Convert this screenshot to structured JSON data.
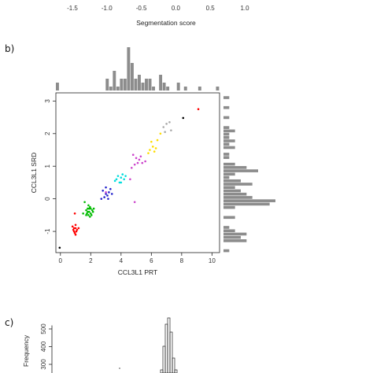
{
  "panels": {
    "b": "b)",
    "c": "c)"
  },
  "chart_data": [
    {
      "type": "table",
      "description_axis_only": true,
      "xlabel": "Segmentation score",
      "xticks": [
        "-1.5",
        "-1.0",
        "-0.5",
        "0.0",
        "0.5",
        "1.0"
      ],
      "tick_values": [
        -1.5,
        -1.0,
        -0.5,
        0.0,
        0.5,
        1.0
      ]
    },
    {
      "type": "scatter",
      "xlabel": "CCL3L1 PRT",
      "ylabel": "CCL3L1 SRD",
      "xlim": [
        -0.3,
        10.5
      ],
      "ylim": [
        -1.65,
        3.25
      ],
      "xticks": [
        "0",
        "2",
        "4",
        "6",
        "8",
        "10"
      ],
      "yticks": [
        "-1",
        "0",
        "1",
        "2",
        "3"
      ],
      "clusters": [
        {
          "color": "#000000",
          "points": [
            [
              -0.05,
              -1.5
            ]
          ]
        },
        {
          "color": "#ff0000",
          "points": [
            [
              0.8,
              -0.85
            ],
            [
              0.9,
              -1.0
            ],
            [
              1.0,
              -0.9
            ],
            [
              0.95,
              -1.05
            ],
            [
              1.1,
              -0.95
            ],
            [
              0.85,
              -0.95
            ],
            [
              1.0,
              -0.8
            ],
            [
              0.9,
              -0.9
            ],
            [
              1.05,
              -1.0
            ],
            [
              1.2,
              -0.9
            ],
            [
              0.95,
              -0.45
            ],
            [
              1.0,
              -1.1
            ]
          ]
        },
        {
          "color": "#00bb00",
          "points": [
            [
              1.7,
              -0.35
            ],
            [
              1.8,
              -0.4
            ],
            [
              1.9,
              -0.3
            ],
            [
              2.0,
              -0.45
            ],
            [
              1.85,
              -0.5
            ],
            [
              2.1,
              -0.35
            ],
            [
              1.95,
              -0.25
            ],
            [
              1.75,
              -0.45
            ],
            [
              2.05,
              -0.5
            ],
            [
              1.9,
              -0.4
            ],
            [
              1.8,
              -0.3
            ],
            [
              2.0,
              -0.3
            ],
            [
              1.95,
              -0.55
            ],
            [
              2.15,
              -0.4
            ],
            [
              1.7,
              -0.5
            ],
            [
              1.6,
              -0.1
            ],
            [
              1.85,
              -0.2
            ],
            [
              2.2,
              -0.3
            ],
            [
              1.5,
              -0.45
            ]
          ]
        },
        {
          "color": "#2222cc",
          "points": [
            [
              2.8,
              0.25
            ],
            [
              3.0,
              0.15
            ],
            [
              3.2,
              0.2
            ],
            [
              2.9,
              0.05
            ],
            [
              3.1,
              0.1
            ],
            [
              3.3,
              0.3
            ],
            [
              3.0,
              0.35
            ],
            [
              2.7,
              0.0
            ],
            [
              3.4,
              0.15
            ],
            [
              3.15,
              0.0
            ]
          ]
        },
        {
          "color": "#00dddd",
          "points": [
            [
              3.8,
              0.7
            ],
            [
              4.0,
              0.65
            ],
            [
              4.2,
              0.6
            ],
            [
              3.9,
              0.5
            ],
            [
              4.1,
              0.75
            ],
            [
              3.7,
              0.6
            ],
            [
              4.3,
              0.7
            ],
            [
              3.6,
              0.55
            ],
            [
              4.0,
              0.5
            ]
          ]
        },
        {
          "color": "#cc44cc",
          "points": [
            [
              4.8,
              1.35
            ],
            [
              5.0,
              1.25
            ],
            [
              5.2,
              1.2
            ],
            [
              5.4,
              1.1
            ],
            [
              5.3,
              1.3
            ],
            [
              4.9,
              1.05
            ],
            [
              5.1,
              1.1
            ],
            [
              4.7,
              0.95
            ],
            [
              4.6,
              0.6
            ],
            [
              5.6,
              1.15
            ],
            [
              3.0,
              0.2
            ],
            [
              4.9,
              -0.1
            ]
          ]
        },
        {
          "color": "#ffdd00",
          "points": [
            [
              5.9,
              1.5
            ],
            [
              6.1,
              1.6
            ],
            [
              6.3,
              1.55
            ],
            [
              6.0,
              1.75
            ],
            [
              6.4,
              1.8
            ],
            [
              6.2,
              1.45
            ],
            [
              6.6,
              2.0
            ],
            [
              5.8,
              1.4
            ]
          ]
        },
        {
          "color": "#aaaaaa",
          "points": [
            [
              6.8,
              2.2
            ],
            [
              7.0,
              2.3
            ],
            [
              7.2,
              2.35
            ],
            [
              6.9,
              2.05
            ],
            [
              7.3,
              2.1
            ]
          ]
        },
        {
          "color": "#000000",
          "points": [
            [
              8.1,
              2.48
            ]
          ]
        },
        {
          "color": "#ff0000",
          "points": [
            [
              9.1,
              2.75
            ]
          ]
        }
      ],
      "marginal_top_counts": [
        2,
        0,
        0,
        0,
        0,
        0,
        0,
        0,
        0,
        0,
        0,
        0,
        0,
        0,
        3,
        1,
        5,
        1,
        3,
        3,
        11,
        7,
        3,
        4,
        2,
        3,
        3,
        1,
        0,
        4,
        2,
        1,
        0,
        0,
        2,
        0,
        1,
        0,
        0,
        0,
        1,
        0,
        0,
        0,
        0,
        1
      ],
      "marginal_right_counts": [
        1,
        0,
        0,
        4,
        3,
        4,
        2,
        1,
        0,
        0,
        2,
        0,
        0,
        2,
        8,
        9,
        5,
        4,
        3,
        2,
        5,
        3,
        1,
        2,
        6,
        4,
        2,
        0,
        1,
        1,
        0,
        2,
        1,
        2,
        1,
        1,
        2,
        1,
        0,
        0,
        1,
        0,
        0,
        1,
        0,
        0,
        1,
        0
      ]
    },
    {
      "type": "bar",
      "ylabel": "Frequency",
      "yticks": [
        "300",
        "400",
        "500"
      ],
      "note": "partially visible histogram"
    }
  ]
}
